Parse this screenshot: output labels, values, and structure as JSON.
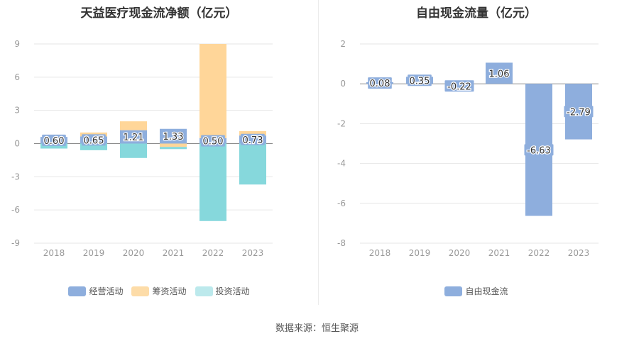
{
  "charts": [
    {
      "title": "天益医疗现金流净额（亿元）",
      "legend": [
        {
          "label": "经营活动",
          "color": "#8eaedd"
        },
        {
          "label": "筹资活动",
          "color": "#fddca8"
        },
        {
          "label": "投资活动",
          "color": "#bce9ec"
        }
      ]
    },
    {
      "title": "自由现金流量（亿元）",
      "legend": [
        {
          "label": "自由现金流",
          "color": "#8eaedd"
        }
      ]
    }
  ],
  "source": "数据来源：恒生聚源",
  "chart_data": [
    {
      "type": "bar",
      "stacked": true,
      "title": "天益医疗现金流净额（亿元）",
      "categories": [
        "2018",
        "2019",
        "2020",
        "2021",
        "2022",
        "2023"
      ],
      "series": [
        {
          "name": "经营活动",
          "color": "#8eaedd",
          "values": [
            0.6,
            0.65,
            1.21,
            1.33,
            0.5,
            0.73
          ],
          "labels": [
            "0.60",
            "0.65",
            "1.21",
            "1.33",
            "0.50",
            "0.73"
          ]
        },
        {
          "name": "筹资活动",
          "color": "#ffd699",
          "values": [
            0.0,
            0.35,
            0.8,
            -0.3,
            8.5,
            0.4
          ]
        },
        {
          "name": "投资活动",
          "color": "#86d8dc",
          "values": [
            -0.45,
            -0.6,
            -1.3,
            -0.2,
            -7.0,
            -3.7
          ]
        }
      ],
      "yticks": [
        "9",
        "6",
        "3",
        "0",
        "-3",
        "-6",
        "-9"
      ],
      "ylim": [
        -9,
        9
      ],
      "grid": true,
      "legend_position": "bottom"
    },
    {
      "type": "bar",
      "title": "自由现金流量（亿元）",
      "categories": [
        "2018",
        "2019",
        "2020",
        "2021",
        "2022",
        "2023"
      ],
      "series": [
        {
          "name": "自由现金流",
          "color": "#8eaedd",
          "values": [
            0.08,
            0.35,
            -0.22,
            1.06,
            -6.63,
            -2.79
          ],
          "labels": [
            "0.08",
            "0.35",
            "-0.22",
            "1.06",
            "-6.63",
            "-2.79"
          ]
        }
      ],
      "yticks": [
        "2",
        "0",
        "-2",
        "-4",
        "-6",
        "-8"
      ],
      "ylim": [
        -8,
        2
      ],
      "grid": true,
      "legend_position": "bottom"
    }
  ]
}
